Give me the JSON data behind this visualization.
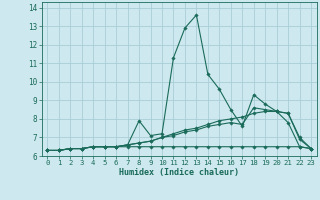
{
  "xlabel": "Humidex (Indice chaleur)",
  "bg_color": "#cde8ee",
  "line_color": "#1a6b5a",
  "grid_color": "#aacdd6",
  "x_values": [
    0,
    1,
    2,
    3,
    4,
    5,
    6,
    7,
    8,
    9,
    10,
    11,
    12,
    13,
    14,
    15,
    16,
    17,
    18,
    19,
    20,
    21,
    22,
    23
  ],
  "series": [
    [
      6.3,
      6.3,
      6.4,
      6.4,
      6.5,
      6.5,
      6.5,
      6.6,
      7.9,
      7.1,
      7.2,
      11.3,
      12.9,
      13.6,
      10.4,
      9.6,
      8.5,
      7.6,
      9.3,
      8.8,
      8.4,
      7.8,
      6.5,
      6.4
    ],
    [
      6.3,
      6.3,
      6.4,
      6.4,
      6.5,
      6.5,
      6.5,
      6.6,
      6.7,
      6.8,
      7.0,
      7.2,
      7.4,
      7.5,
      7.7,
      7.9,
      8.0,
      8.1,
      8.3,
      8.4,
      8.4,
      8.3,
      7.0,
      6.4
    ],
    [
      6.3,
      6.3,
      6.4,
      6.4,
      6.5,
      6.5,
      6.5,
      6.6,
      6.7,
      6.8,
      7.0,
      7.1,
      7.3,
      7.4,
      7.6,
      7.7,
      7.8,
      7.7,
      8.6,
      8.5,
      8.4,
      8.3,
      6.9,
      6.4
    ],
    [
      6.3,
      6.3,
      6.4,
      6.4,
      6.5,
      6.5,
      6.5,
      6.5,
      6.5,
      6.5,
      6.5,
      6.5,
      6.5,
      6.5,
      6.5,
      6.5,
      6.5,
      6.5,
      6.5,
      6.5,
      6.5,
      6.5,
      6.5,
      6.4
    ]
  ],
  "ylim": [
    6.0,
    14.3
  ],
  "yticks": [
    6,
    7,
    8,
    9,
    10,
    11,
    12,
    13,
    14
  ],
  "xlim": [
    -0.5,
    23.5
  ]
}
